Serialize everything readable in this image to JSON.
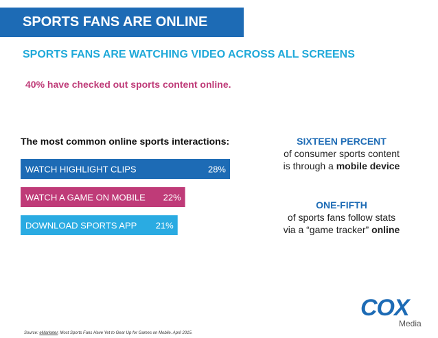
{
  "header": {
    "banner_title": "SPORTS FANS ARE ONLINE",
    "subtitle": "SPORTS FANS ARE WATCHING VIDEO ACROSS ALL SCREENS",
    "stat_line": "40% have checked out sports content online."
  },
  "chart_data": {
    "type": "bar",
    "title": "The most common online sports interactions:",
    "categories": [
      "WATCH HIGHLIGHT CLIPS",
      "WATCH A GAME ON MOBILE",
      "DOWNLOAD SPORTS APP"
    ],
    "values": [
      28,
      22,
      21
    ],
    "value_labels": [
      "28%",
      "22%",
      "21%"
    ],
    "colors": [
      "#1d6bb5",
      "#bf3b78",
      "#2aabe2"
    ],
    "orientation": "horizontal"
  },
  "callouts": [
    {
      "heading": "SIXTEEN PERCENT",
      "line1": "of consumer sports content",
      "line2_plain": "is through a ",
      "line2_bold": "mobile device"
    },
    {
      "heading": "ONE-FIFTH",
      "line1": "of sports fans follow stats",
      "line2_plain": "via a “game tracker” ",
      "line2_bold": "online"
    }
  ],
  "logo": {
    "word": "COX",
    "sub": "Media"
  },
  "source": {
    "prefix": "Source: ",
    "link": "eMarketer",
    "rest": ", Most Sports Fans Have Yet to Gear Up for Games on Mobile. April 2015."
  },
  "colors": {
    "primary": "#1d6bb5",
    "accent_cyan": "#1fa9d9",
    "accent_magenta": "#bf3b78"
  }
}
